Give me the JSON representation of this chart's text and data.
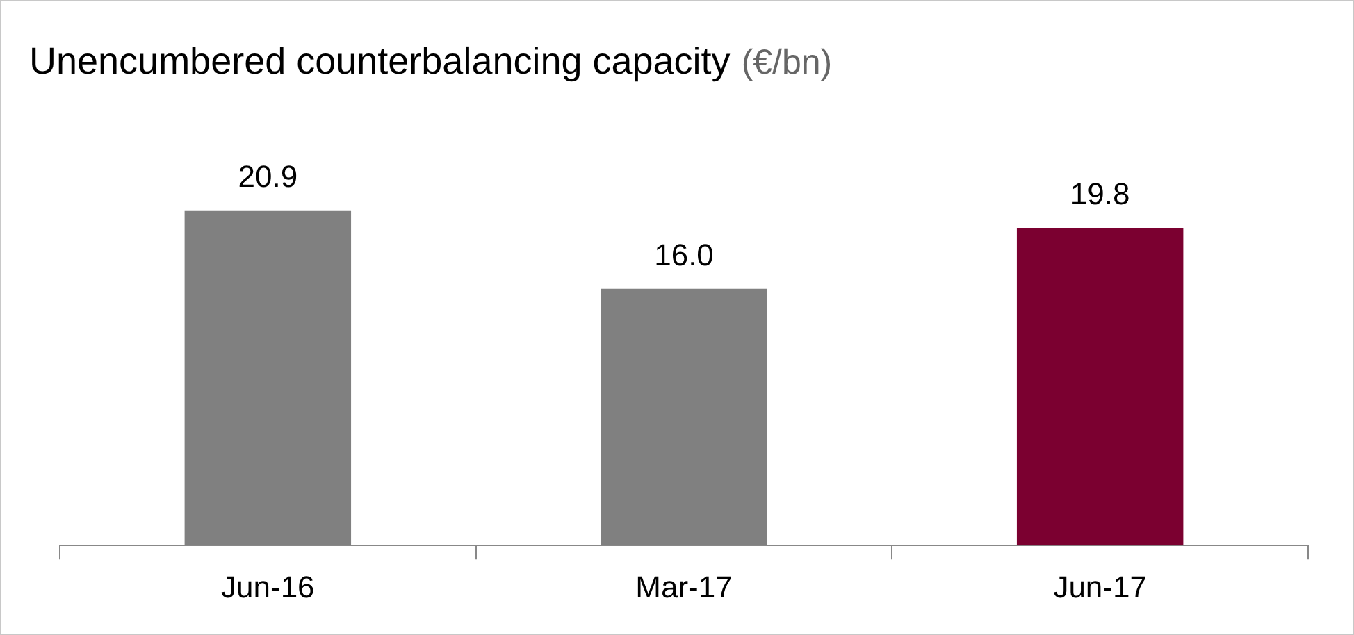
{
  "chart_data": {
    "type": "bar",
    "title": "Unencumbered counterbalancing capacity",
    "subtitle": "(€/bn)",
    "categories": [
      "Jun-16",
      "Mar-17",
      "Jun-17"
    ],
    "values": [
      20.9,
      16.0,
      19.8
    ],
    "colors": [
      "#808080",
      "#808080",
      "#7b0030"
    ],
    "value_labels": [
      "20.9",
      "16.0",
      "19.8"
    ],
    "relative": false,
    "grid": false,
    "legend": false
  }
}
